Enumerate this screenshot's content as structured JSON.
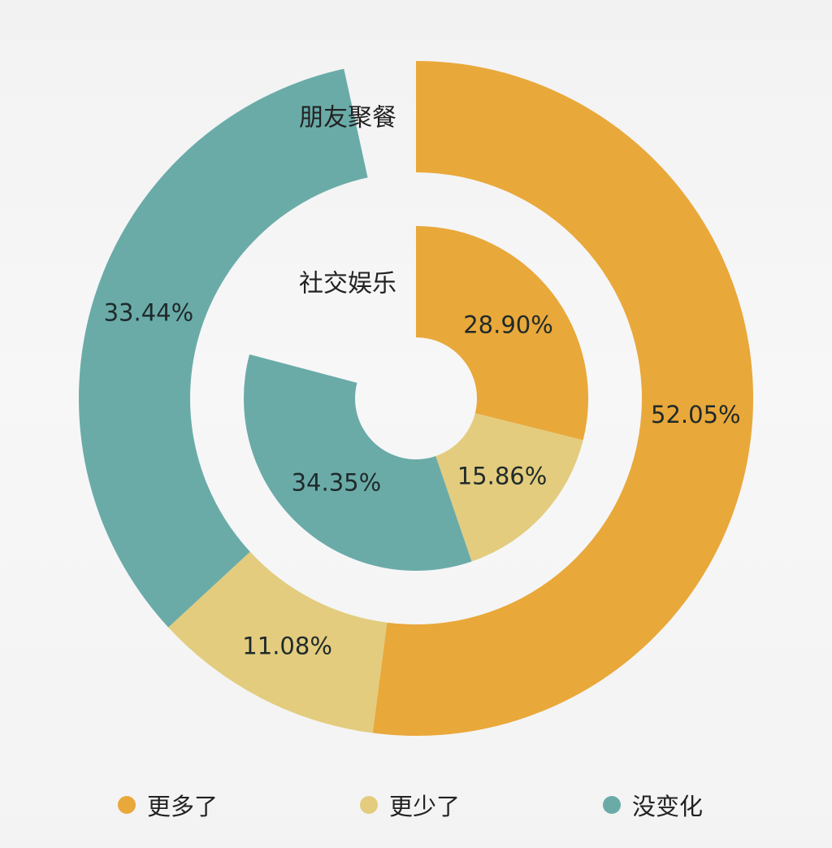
{
  "chart_data": {
    "type": "pie",
    "subtype": "nested-donut",
    "categories": [
      "更多了",
      "更少了",
      "没变化"
    ],
    "colors": {
      "更多了": "#e9a83a",
      "更少了": "#e3cc7e",
      "没变化": "#6aaba8"
    },
    "rings": [
      {
        "name": "朋友聚餐",
        "position": "outer",
        "values": [
          52.05,
          11.08,
          33.44
        ],
        "labels": [
          "52.05%",
          "11.08%",
          "33.44%"
        ]
      },
      {
        "name": "社交娱乐",
        "position": "inner",
        "values": [
          28.9,
          15.86,
          34.35
        ],
        "labels": [
          "28.90%",
          "15.86%",
          "34.35%"
        ]
      }
    ],
    "legend": {
      "position": "bottom",
      "entries": [
        "更多了",
        "更少了",
        "没变化"
      ]
    },
    "start_angle": "12 o'clock",
    "direction": "clockwise"
  }
}
